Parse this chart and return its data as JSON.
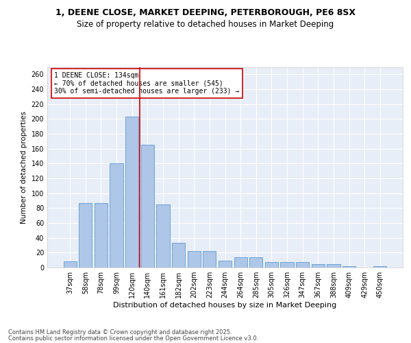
{
  "title1": "1, DEENE CLOSE, MARKET DEEPING, PETERBOROUGH, PE6 8SX",
  "title2": "Size of property relative to detached houses in Market Deeping",
  "xlabel": "Distribution of detached houses by size in Market Deeping",
  "ylabel": "Number of detached properties",
  "categories": [
    "37sqm",
    "58sqm",
    "78sqm",
    "99sqm",
    "120sqm",
    "140sqm",
    "161sqm",
    "182sqm",
    "202sqm",
    "223sqm",
    "244sqm",
    "264sqm",
    "285sqm",
    "305sqm",
    "326sqm",
    "347sqm",
    "367sqm",
    "388sqm",
    "409sqm",
    "429sqm",
    "450sqm"
  ],
  "values": [
    8,
    87,
    87,
    140,
    203,
    165,
    85,
    33,
    22,
    22,
    9,
    14,
    14,
    7,
    7,
    7,
    5,
    5,
    2,
    0,
    2
  ],
  "bar_color": "#aec6e8",
  "bar_edge_color": "#5b9bd5",
  "annotation_text": "1 DEENE CLOSE: 134sqm\n← 70% of detached houses are smaller (545)\n30% of semi-detached houses are larger (233) →",
  "annotation_box_color": "#ffffff",
  "annotation_box_edge": "#cc0000",
  "red_line_color": "#cc0000",
  "ylim": [
    0,
    270
  ],
  "yticks": [
    0,
    20,
    40,
    60,
    80,
    100,
    120,
    140,
    160,
    180,
    200,
    220,
    240,
    260
  ],
  "background_color": "#e8eef7",
  "fig_background_color": "#ffffff",
  "footer_line1": "Contains HM Land Registry data © Crown copyright and database right 2025.",
  "footer_line2": "Contains public sector information licensed under the Open Government Licence v3.0.",
  "title1_fontsize": 9,
  "title2_fontsize": 8.5,
  "xlabel_fontsize": 8,
  "ylabel_fontsize": 7.5,
  "tick_fontsize": 7,
  "annotation_fontsize": 7,
  "footer_fontsize": 6
}
